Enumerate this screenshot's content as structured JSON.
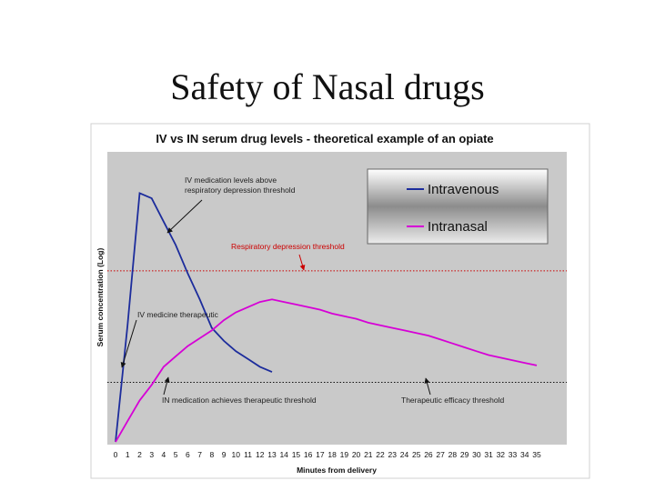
{
  "slide": {
    "title": "Safety of Nasal drugs"
  },
  "chart_data": {
    "type": "line",
    "title": "IV vs IN serum drug levels - theoretical example of an opiate",
    "xlabel": "Minutes from delivery",
    "ylabel": "Serum concentration (Log)",
    "x": [
      0,
      1,
      2,
      3,
      4,
      5,
      6,
      7,
      8,
      9,
      10,
      11,
      12,
      13,
      14,
      15,
      16,
      17,
      18,
      19,
      20,
      21,
      22,
      23,
      24,
      25,
      26,
      27,
      28,
      29,
      30,
      31,
      32,
      33,
      34,
      35
    ],
    "xlim": [
      0,
      35
    ],
    "ylim": [
      0,
      100
    ],
    "grid": false,
    "legend": "top-right",
    "colors": {
      "plot_bg": "#c9c9c9",
      "intravenous": "#1c2c9c",
      "intranasal": "#d600d6",
      "threshold_line": "#cc0000",
      "efficacy_line": "#111111"
    },
    "series": [
      {
        "name": "Intravenous",
        "color": "#1c2c9c",
        "points": [
          [
            0,
            0
          ],
          [
            1,
            45
          ],
          [
            2,
            96
          ],
          [
            3,
            94
          ],
          [
            4,
            85
          ],
          [
            5,
            76
          ],
          [
            6,
            65
          ],
          [
            7,
            55
          ],
          [
            8,
            44
          ],
          [
            9,
            39
          ],
          [
            10,
            35
          ],
          [
            11,
            32
          ],
          [
            12,
            29
          ],
          [
            13,
            27
          ]
        ]
      },
      {
        "name": "Intranasal",
        "color": "#d600d6",
        "points": [
          [
            0,
            0
          ],
          [
            1,
            8
          ],
          [
            2,
            16
          ],
          [
            3,
            22
          ],
          [
            4,
            29
          ],
          [
            5,
            33
          ],
          [
            6,
            37
          ],
          [
            7,
            40
          ],
          [
            8,
            43
          ],
          [
            9,
            47
          ],
          [
            10,
            50
          ],
          [
            11,
            52
          ],
          [
            12,
            54
          ],
          [
            13,
            55
          ],
          [
            14,
            54
          ],
          [
            15,
            53
          ],
          [
            16,
            52
          ],
          [
            17,
            51
          ],
          [
            18,
            49.5
          ],
          [
            19,
            48.5
          ],
          [
            20,
            47.5
          ],
          [
            21,
            46
          ],
          [
            22,
            45
          ],
          [
            23,
            44
          ],
          [
            24,
            43
          ],
          [
            25,
            42
          ],
          [
            26,
            41
          ],
          [
            27,
            39.5
          ],
          [
            28,
            38
          ],
          [
            29,
            36.5
          ],
          [
            30,
            35
          ],
          [
            31,
            33.5
          ],
          [
            32,
            32.5
          ],
          [
            33,
            31.5
          ],
          [
            34,
            30.5
          ],
          [
            35,
            29.5
          ]
        ]
      }
    ],
    "thresholds": [
      {
        "name": "Respiratory depression threshold",
        "y": 66,
        "color": "#cc0000"
      },
      {
        "name": "Therapeutic efficacy threshold",
        "y": 23,
        "color": "#111111"
      }
    ],
    "annotations": [
      {
        "lines": [
          "IV medication levels above",
          "respiratory depression threshold"
        ]
      },
      {
        "lines": [
          "Respiratory depression threshold"
        ]
      },
      {
        "lines": [
          "IV medicine therapeutic"
        ]
      },
      {
        "lines": [
          "IN medication achieves therapeutic threshold"
        ]
      },
      {
        "lines": [
          "Therapeutic efficacy threshold"
        ]
      }
    ]
  }
}
